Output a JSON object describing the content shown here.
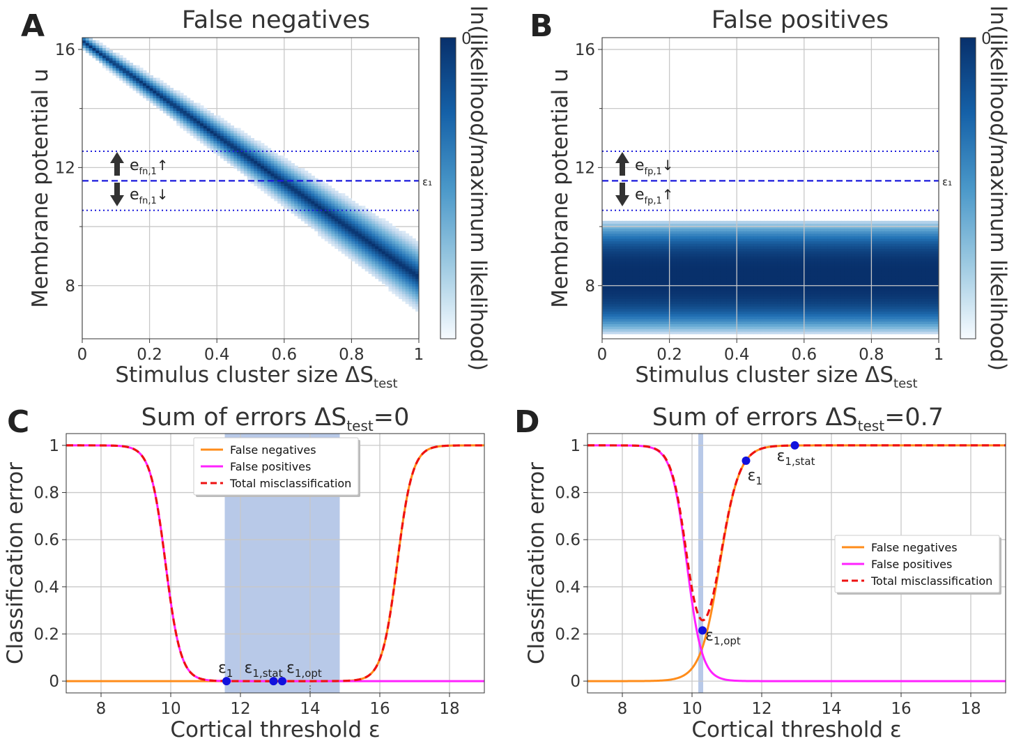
{
  "panels": {
    "A": {
      "letter": "A",
      "title": "False negatives",
      "xlabel_main": "Stimulus cluster size ΔS",
      "xlabel_sub": "test",
      "ylabel": "Membrane potential u",
      "colorbar_label": "ln(likelihood/maximum likelihood)",
      "colorbar_top_tick": "0",
      "threshold_label": "ε₁",
      "arrow_label_up": "e",
      "arrow_label_up_sub": "fn,1",
      "arrow_label_up_dir": "↑",
      "arrow_label_down": "e",
      "arrow_label_down_sub": "fn,1",
      "arrow_label_down_dir": "↓"
    },
    "B": {
      "letter": "B",
      "title": "False positives",
      "xlabel_main": "Stimulus cluster size ΔS",
      "xlabel_sub": "test",
      "ylabel": "Membrane potential u",
      "colorbar_label": "ln(likelihood/maximum likelihood)",
      "colorbar_top_tick": "0",
      "threshold_label": "ε₁",
      "arrow_label_up": "e",
      "arrow_label_up_sub": "fp,1",
      "arrow_label_up_dir": "↓",
      "arrow_label_down": "e",
      "arrow_label_down_sub": "fp,1",
      "arrow_label_down_dir": "↑"
    },
    "C": {
      "letter": "C",
      "title_main": "Sum of errors ΔS",
      "title_sub": "test",
      "title_tail": "=0",
      "xlabel": "Cortical threshold ε",
      "ylabel": "Classification error",
      "legend": [
        "False negatives",
        "False positives",
        "Total misclassification"
      ],
      "markers": [
        {
          "label": "ε",
          "sub": "1"
        },
        {
          "label": "ε",
          "sub": "1,stat"
        },
        {
          "label": "ε",
          "sub": "1,opt"
        }
      ]
    },
    "D": {
      "letter": "D",
      "title_main": "Sum of errors ΔS",
      "title_sub": "test",
      "title_tail": "=0.7",
      "xlabel": "Cortical threshold ε",
      "ylabel": "Classification error",
      "legend": [
        "False negatives",
        "False positives",
        "Total misclassification"
      ],
      "markers": [
        {
          "label": "ε",
          "sub": "1"
        },
        {
          "label": "ε",
          "sub": "1,stat"
        },
        {
          "label": "ε",
          "sub": "1,opt"
        }
      ]
    }
  },
  "colors": {
    "false_negatives": "#ff8c1a",
    "false_positives": "#ff22ff",
    "total": "#ee1111",
    "threshold_line": "#1a1adc",
    "marker": "#1111dd",
    "shade": "#b8c9e8",
    "heat_dark": "#08306b",
    "heat_light": "#f7fbff",
    "grid": "#c8c8c8"
  },
  "chart_data": [
    {
      "type": "heatmap",
      "panel": "A",
      "description_key": "false negatives likelihood",
      "xlim": [
        0,
        1
      ],
      "ylim": [
        6.2,
        16.4
      ],
      "xticks": [
        0,
        0.2,
        0.4,
        0.6,
        0.8,
        1
      ],
      "xtick_labels": [
        "0",
        "0.2",
        "0.4",
        "0.6",
        "0.8",
        "1"
      ],
      "yticks": [
        8,
        12,
        16
      ],
      "ytick_labels": [
        "8",
        "12",
        "16"
      ],
      "band_center_at_x0": 16.3,
      "band_center_at_x1": 8.3,
      "band_halfwidth_at_x0": 0.25,
      "band_halfwidth_at_x1": 1.0,
      "threshold_eps1": 11.55,
      "upper_dotted": 12.55,
      "lower_dotted": 10.55
    },
    {
      "type": "heatmap",
      "panel": "B",
      "xlim": [
        0,
        1
      ],
      "ylim": [
        6.2,
        16.4
      ],
      "xticks": [
        0,
        0.2,
        0.4,
        0.6,
        0.8,
        1
      ],
      "xtick_labels": [
        "0",
        "0.2",
        "0.4",
        "0.6",
        "0.8",
        "1"
      ],
      "yticks": [
        8,
        12,
        16
      ],
      "ytick_labels": [
        "8",
        "12",
        "16"
      ],
      "band_center": 8.3,
      "band_halfwidth": 1.9,
      "threshold_eps1": 11.55,
      "upper_dotted": 12.55,
      "lower_dotted": 10.55
    },
    {
      "type": "line",
      "panel": "C",
      "xlim": [
        7,
        19
      ],
      "ylim": [
        -0.05,
        1.05
      ],
      "xticks": [
        8,
        10,
        12,
        14,
        16,
        18
      ],
      "xtick_labels": [
        "8",
        "10",
        "12",
        "14",
        "16",
        "18"
      ],
      "yticks": [
        0,
        0.2,
        0.4,
        0.6,
        0.8,
        1
      ],
      "ytick_labels": [
        "0",
        "0.2",
        "0.4",
        "0.6",
        "0.8",
        "1"
      ],
      "series": [
        {
          "name": "False negatives",
          "model": "sigmoid_up",
          "center": 16.5,
          "scale": 0.22
        },
        {
          "name": "False positives",
          "model": "sigmoid_down",
          "center": 9.85,
          "scale": 0.22
        },
        {
          "name": "Total misclassification",
          "model": "sum"
        }
      ],
      "shade_range": [
        11.55,
        14.85
      ],
      "marker_points": [
        {
          "x": 11.6,
          "y": 0.0
        },
        {
          "x": 12.95,
          "y": 0.0
        },
        {
          "x": 13.2,
          "y": 0.0
        }
      ]
    },
    {
      "type": "line",
      "panel": "D",
      "xlim": [
        7,
        19
      ],
      "ylim": [
        -0.05,
        1.05
      ],
      "xticks": [
        8,
        10,
        12,
        14,
        16,
        18
      ],
      "xtick_labels": [
        "8",
        "10",
        "12",
        "14",
        "16",
        "18"
      ],
      "yticks": [
        0,
        0.2,
        0.4,
        0.6,
        0.8,
        1
      ],
      "ytick_labels": [
        "0",
        "0.2",
        "0.4",
        "0.6",
        "0.8",
        "1"
      ],
      "series": [
        {
          "name": "False negatives",
          "model": "sigmoid_up",
          "center": 10.8,
          "scale": 0.28
        },
        {
          "name": "False positives",
          "model": "sigmoid_down",
          "center": 9.85,
          "scale": 0.22
        },
        {
          "name": "Total misclassification",
          "model": "sum"
        }
      ],
      "shade_range": [
        10.18,
        10.32
      ],
      "marker_points": [
        {
          "x": 11.55,
          "y": 0.935
        },
        {
          "x": 12.95,
          "y": 1.0
        },
        {
          "x": 10.3,
          "y": 0.215
        }
      ]
    }
  ]
}
